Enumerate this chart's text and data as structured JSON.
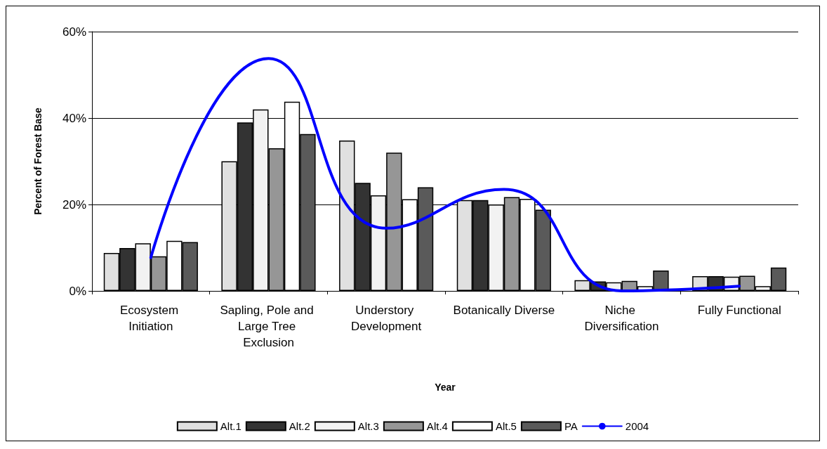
{
  "chart_data": {
    "type": "bar",
    "xlabel": "Year",
    "ylabel": "Percent of Forest Base",
    "categories": [
      "Ecosystem Initiation",
      "Sapling, Pole and Large Tree Exclusion",
      "Understory Development",
      "Botanically Diverse",
      "Niche Diversification",
      "Fully Functional"
    ],
    "series": [
      {
        "name": "Alt.1",
        "color": "#e0e0e0",
        "values": [
          8.8,
          30,
          34.8,
          21,
          2.5,
          3.4
        ]
      },
      {
        "name": "Alt.2",
        "color": "#333333",
        "values": [
          9.9,
          39,
          25,
          21,
          2.2,
          3.4
        ]
      },
      {
        "name": "Alt.3",
        "color": "#f2f2f2",
        "values": [
          11,
          42,
          22.1,
          20,
          2,
          3.3
        ]
      },
      {
        "name": "Alt.4",
        "color": "#969696",
        "values": [
          8,
          33,
          32,
          21.7,
          2.3,
          3.5
        ]
      },
      {
        "name": "Alt.5",
        "color": "#ffffff",
        "values": [
          11.6,
          43.8,
          21.2,
          21.3,
          1.1,
          1.1
        ]
      },
      {
        "name": "PA",
        "color": "#5a5a5a",
        "values": [
          11.3,
          36.3,
          24,
          18.8,
          4.7,
          5.4
        ]
      },
      {
        "name": "2004",
        "type": "line",
        "color": "#0000ff",
        "values": [
          7.7,
          53.8,
          14.5,
          23.5,
          0,
          1.1
        ]
      }
    ],
    "ylim": [
      0,
      60
    ],
    "yticks": [
      {
        "value": 0,
        "label": "0%"
      },
      {
        "value": 20,
        "label": "20%"
      },
      {
        "value": 40,
        "label": "40%"
      },
      {
        "value": 60,
        "label": "60%"
      }
    ],
    "grid": "y",
    "legend": "bottom",
    "marker": "none",
    "line_style": "solid"
  }
}
